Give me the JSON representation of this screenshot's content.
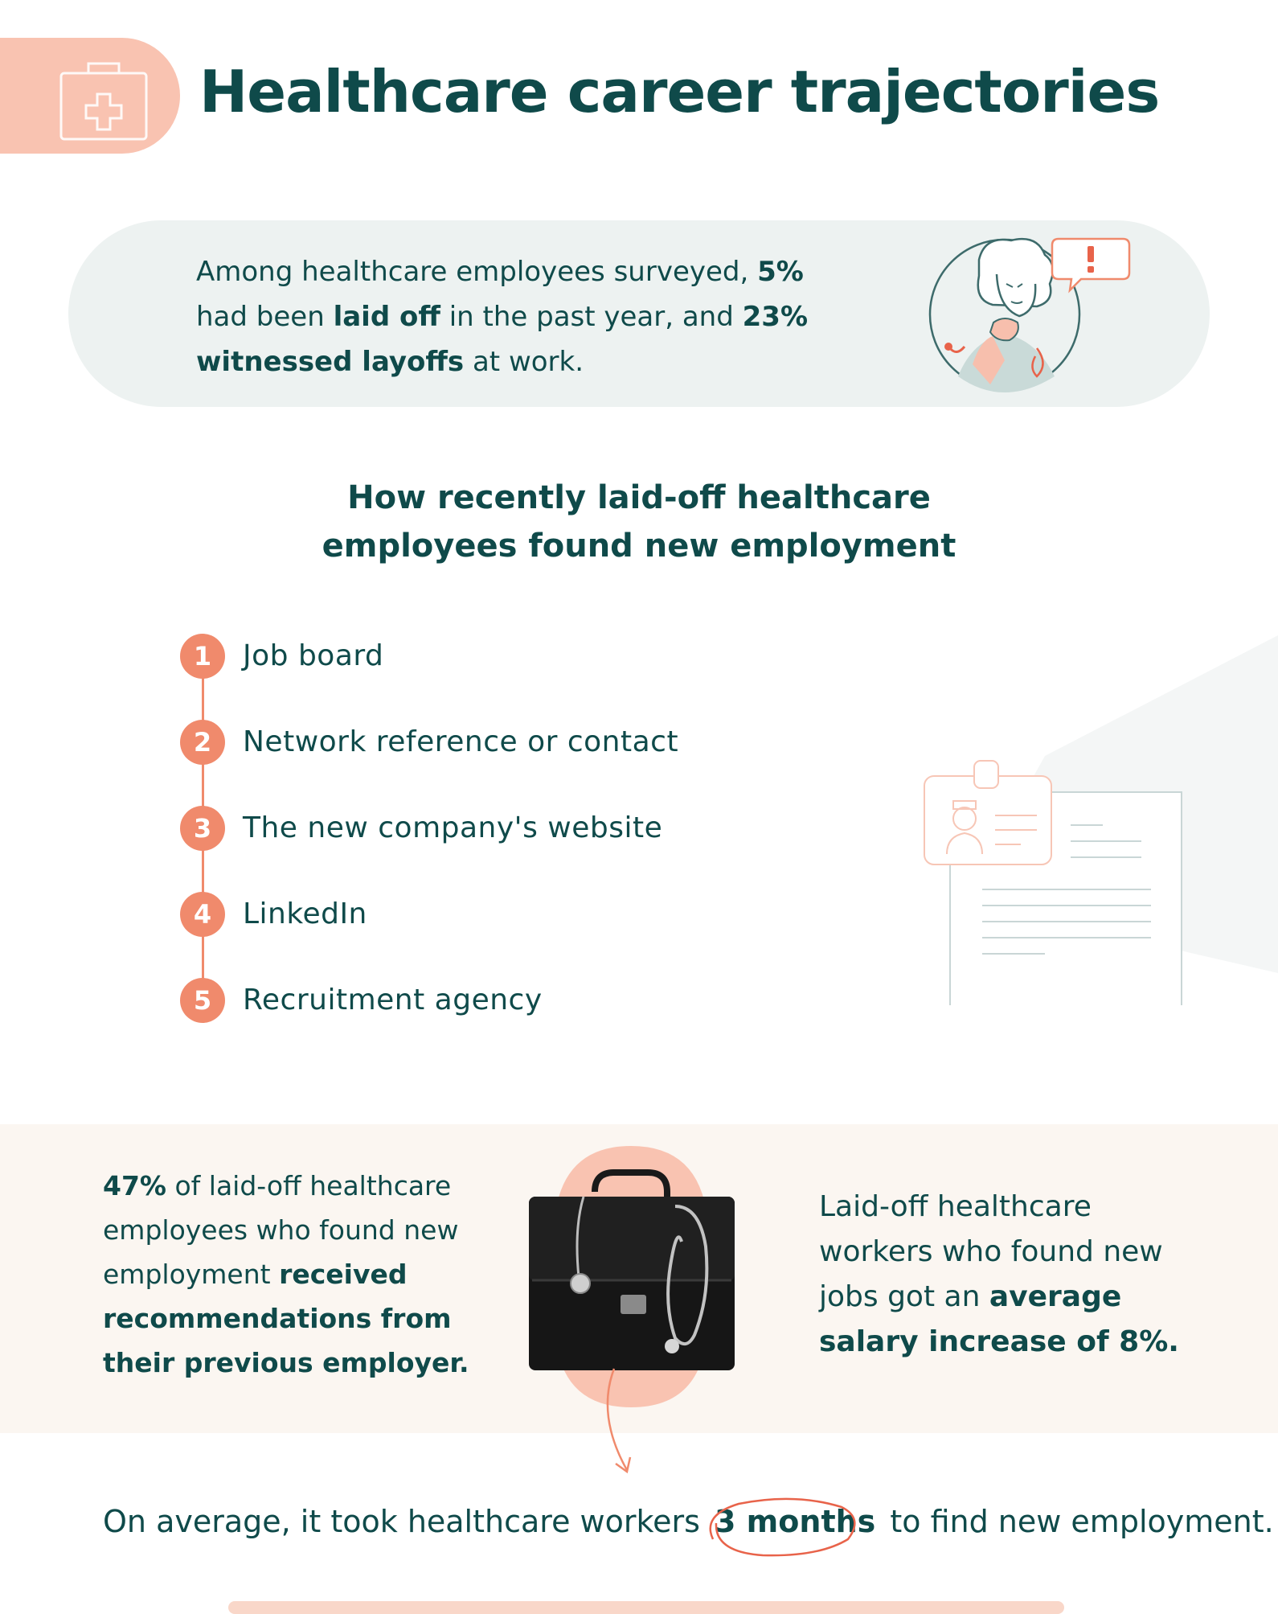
{
  "header": {
    "title": "Healthcare career trajectories"
  },
  "intro": {
    "pre1": "Among healthcare employees surveyed, ",
    "b1": "5%",
    "mid1": " had been ",
    "b2": "laid off",
    "mid2": " in the past year, and ",
    "b3": "23%",
    "mid3": " ",
    "b4": "witnessed layoffs",
    "post": " at work."
  },
  "section": {
    "title_line1": "How recently laid-off healthcare",
    "title_line2": "employees found new employment"
  },
  "steps": [
    {
      "num": "1",
      "label": "Job board"
    },
    {
      "num": "2",
      "label": "Network reference or contact"
    },
    {
      "num": "3",
      "label": "The new company's website"
    },
    {
      "num": "4",
      "label": "LinkedIn"
    },
    {
      "num": "5",
      "label": "Recruitment agency"
    }
  ],
  "left_stat": {
    "b1": "47%",
    "text1": " of laid-off healthcare employees who found new employment ",
    "b2": "received recommendations from their previous employer."
  },
  "right_stat": {
    "text1": "Laid-off healthcare workers who found new jobs got an ",
    "b1": "average salary increase of 8%."
  },
  "bottom": {
    "pre": "On average, it took healthcare workers ",
    "highlight": "3 months",
    "post": " to find new employment."
  },
  "colors": {
    "teal": "#0f4a4a",
    "coral": "#f08a6c",
    "peach": "#f9c3b1",
    "light_gray": "#edf2f1",
    "cream": "#fbf6f1"
  },
  "icons": {
    "header": "medical-kit-icon",
    "intro": "thinking-doctor-illustration",
    "steps": "nurse-resume-illustration",
    "band": "briefcase-stethoscope-photo",
    "arrow": "curved-arrow-icon"
  }
}
